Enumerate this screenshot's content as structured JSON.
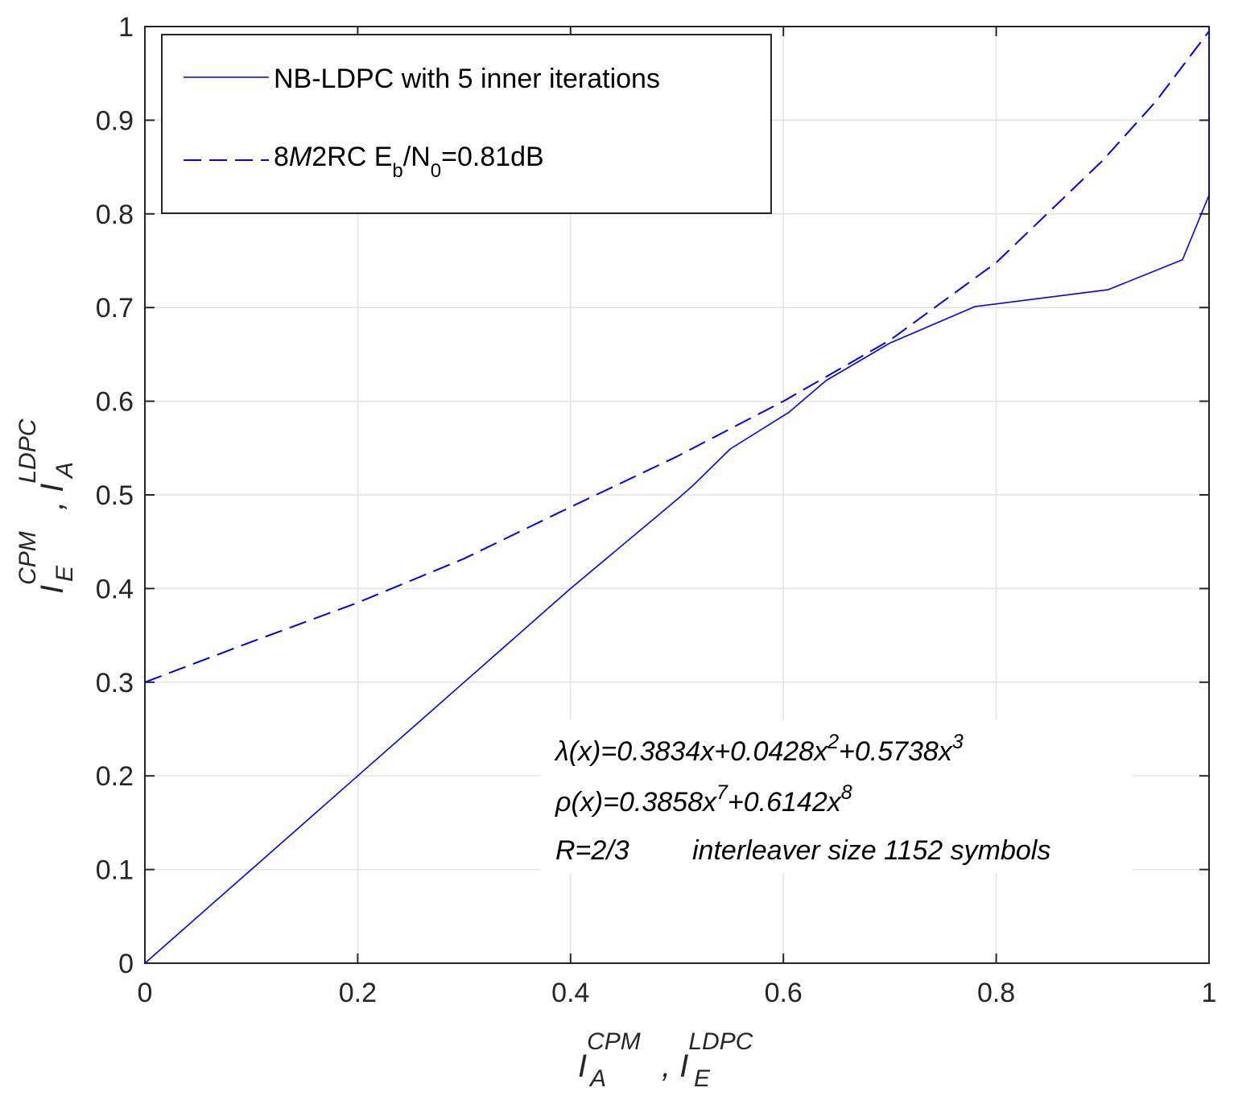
{
  "chart_data": {
    "type": "line",
    "xlim": [
      0,
      1
    ],
    "ylim": [
      0,
      1
    ],
    "grid": true,
    "x_ticks": [
      "0",
      "0.2",
      "0.4",
      "0.6",
      "0.8",
      "1"
    ],
    "y_ticks": [
      "0",
      "0.1",
      "0.2",
      "0.3",
      "0.4",
      "0.5",
      "0.6",
      "0.7",
      "0.8",
      "0.9",
      "1"
    ],
    "x_tick_values": [
      0,
      0.2,
      0.4,
      0.6,
      0.8,
      1
    ],
    "y_tick_values": [
      0,
      0.1,
      0.2,
      0.3,
      0.4,
      0.5,
      0.6,
      0.7,
      0.8,
      0.9,
      1
    ],
    "xlabel": {
      "part1": "I",
      "sub1": "A",
      "sup1": "CPM",
      "sep": ", ",
      "part2": "I",
      "sub2": "E",
      "sup2": "LDPC"
    },
    "ylabel": {
      "part1": "I",
      "sub1": "E",
      "sup1": "CPM",
      "sep": ", ",
      "part2": "I",
      "sub2": "A",
      "sup2": "LDPC"
    },
    "legend_position": "top-left",
    "series": [
      {
        "name": "NB-LDPC with 5 inner iterations",
        "style": "solid",
        "color": "#0000ee",
        "x": [
          0,
          0.1,
          0.2,
          0.3,
          0.4,
          0.5,
          0.515,
          0.55,
          0.605,
          0.64,
          0.7,
          0.78,
          0.905,
          0.975,
          1.0,
          1.0
        ],
        "y": [
          0,
          0.1,
          0.2,
          0.3,
          0.4,
          0.495,
          0.51,
          0.549,
          0.588,
          0.622,
          0.662,
          0.701,
          0.719,
          0.751,
          0.82,
          1.0
        ]
      },
      {
        "name": "8M2RC Eb/N0=0.81dB",
        "style": "dashed",
        "color": "#0000ee",
        "x": [
          0,
          0.1,
          0.2,
          0.3,
          0.4,
          0.5,
          0.6,
          0.7,
          0.8,
          0.9,
          0.95,
          1.0
        ],
        "y": [
          0.3,
          0.343,
          0.385,
          0.432,
          0.487,
          0.541,
          0.6,
          0.665,
          0.748,
          0.857,
          0.92,
          0.995
        ]
      }
    ],
    "legend": {
      "entry1": "NB-LDPC with 5 inner iterations",
      "entry2_pre": "8",
      "entry2_italic": "M",
      "entry2_mid": "2RC E",
      "entry2_sub1": "b",
      "entry2_slash": "/N",
      "entry2_sub2": "0",
      "entry2_post": "=0.81dB"
    },
    "annotations": {
      "lambda_sym": "λ",
      "lambda_a": "(x)=0.3834x+0.0428x",
      "lambda_p1": "2",
      "lambda_b": "+0.5738x",
      "lambda_p2": "3",
      "rho_sym": "ρ",
      "rho_a": "(x)=0.3858x",
      "rho_p1": "7",
      "rho_b": "+0.6142x",
      "rho_p2": "8",
      "rate": "R=2/3",
      "interleaver": "interleaver size 1152 symbols"
    }
  }
}
